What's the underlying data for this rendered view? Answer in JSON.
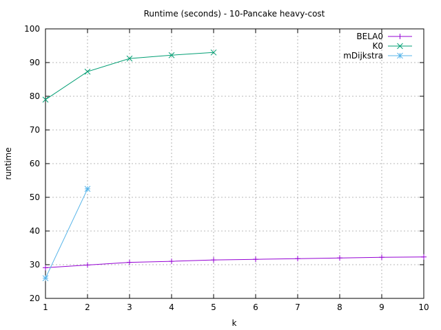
{
  "chart_data": {
    "type": "line",
    "title": "Runtime (seconds) - 10-Pancake heavy-cost",
    "xlabel": "k",
    "ylabel": "runtime",
    "xlim": [
      1,
      10
    ],
    "ylim": [
      20,
      100
    ],
    "xticks": [
      "1",
      "2",
      "3",
      "4",
      "5",
      "6",
      "7",
      "8",
      "9",
      "10"
    ],
    "yticks": [
      "20",
      "30",
      "40",
      "50",
      "60",
      "70",
      "80",
      "90",
      "100"
    ],
    "grid": true,
    "legend_position": "top-right",
    "series": [
      {
        "name": "BELA0",
        "color": "#9400d3",
        "marker": "plus",
        "x": [
          1,
          2,
          3,
          4,
          5,
          6,
          7,
          8,
          9,
          10
        ],
        "y": [
          29.1,
          29.9,
          30.7,
          31.0,
          31.4,
          31.6,
          31.8,
          32.0,
          32.2,
          32.3
        ]
      },
      {
        "name": "K0",
        "color": "#009e73",
        "marker": "cross",
        "x": [
          1,
          2,
          3,
          4,
          5
        ],
        "y": [
          79.0,
          87.3,
          91.2,
          92.2,
          93.0
        ]
      },
      {
        "name": "mDijkstra",
        "color": "#56b4e9",
        "marker": "star",
        "x": [
          1,
          2
        ],
        "y": [
          26.0,
          52.5
        ]
      }
    ]
  }
}
